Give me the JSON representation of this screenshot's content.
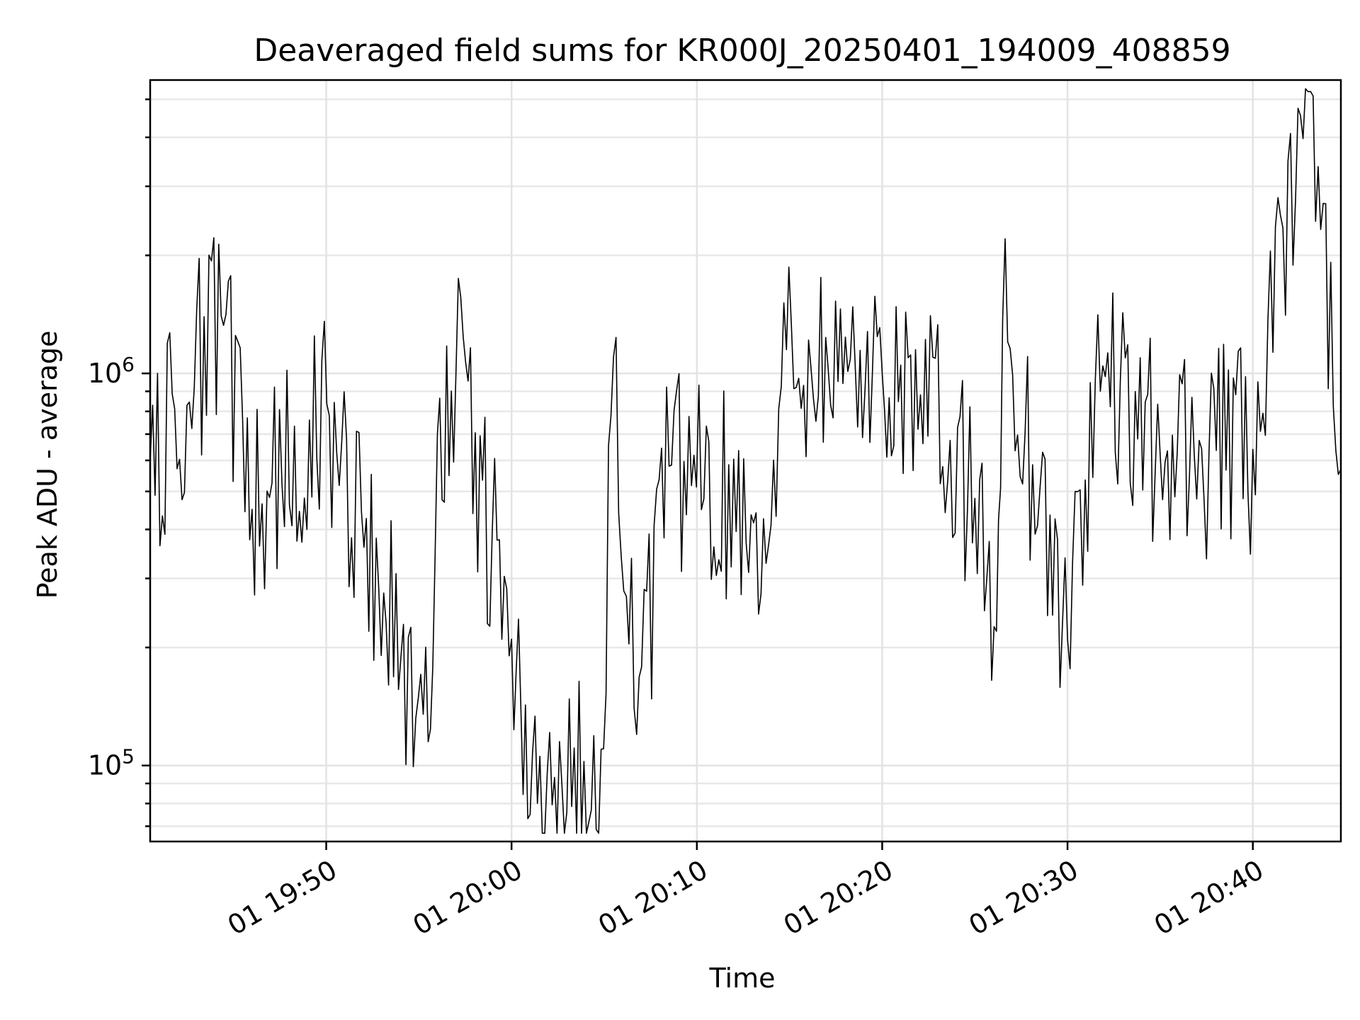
{
  "chart_data": {
    "type": "line",
    "title": "Deaveraged field sums for KR000J_20250401_194009_408859",
    "xlabel": "Time",
    "ylabel": "Peak ADU - average",
    "yscale": "log",
    "grid": true,
    "xlim": [
      "2025-04-01 19:40:30",
      "2025-04-01 20:44:45"
    ],
    "ylim": [
      64000,
      5600000
    ],
    "x_ticks": [
      "01 19:50",
      "01 20:00",
      "01 20:10",
      "01 20:20",
      "01 20:30",
      "01 20:40"
    ],
    "y_ticks": [
      "10^6",
      "10^5"
    ],
    "series": [
      {
        "x": [
          "2025-04-01 19:40:30",
          "2025-04-01 19:44:20",
          "2025-04-01 19:46:00",
          "2025-04-01 19:50:10",
          "2025-04-01 19:55:30",
          "2025-04-01 19:56:00",
          "2025-04-01 19:57:00",
          "2025-04-01 20:00:00",
          "2025-04-01 20:01:00",
          "2025-04-01 20:04:50",
          "2025-04-01 20:05:30",
          "2025-04-01 20:06:45",
          "2025-04-01 20:08:30",
          "2025-04-01 20:14:00",
          "2025-04-01 20:14:50",
          "2025-04-01 20:20:00",
          "2025-04-01 20:21:00",
          "2025-04-01 20:25:00",
          "2025-04-01 20:26:10",
          "2025-04-01 20:26:30",
          "2025-04-01 20:30:00",
          "2025-04-01 20:31:30",
          "2025-04-01 20:35:00",
          "2025-04-01 20:40:00",
          "2025-04-01 20:43:15",
          "2025-04-01 20:44:45"
        ],
        "values": [
          600000,
          1400000,
          450000,
          780000,
          115000,
          700000,
          1000000,
          210000,
          75000,
          110000,
          1100000,
          120000,
          580000,
          410000,
          1150000,
          1000000,
          1050000,
          480000,
          220000,
          1370000,
          210000,
          960000,
          620000,
          640000,
          5100000,
          570000
        ]
      }
    ]
  }
}
